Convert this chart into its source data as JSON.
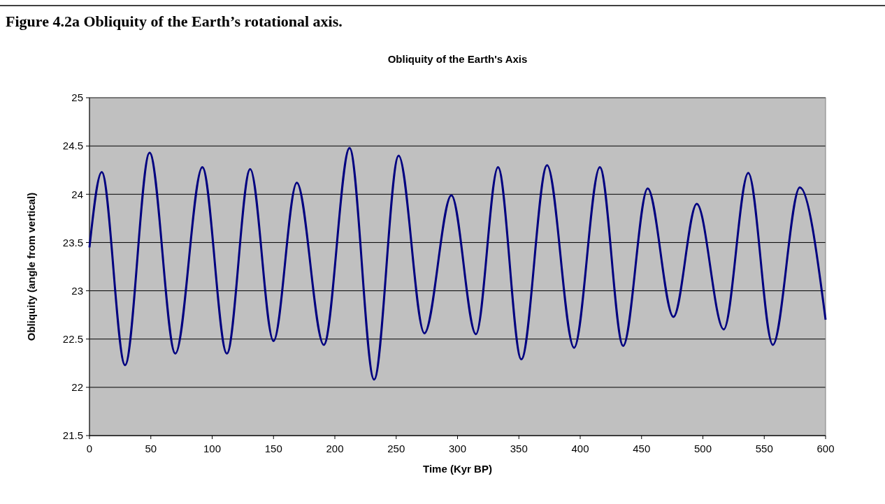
{
  "chart_data": {
    "type": "line",
    "title": "Figure 4.2a Obliquity of the Earth’s rotational axis.",
    "subtitle": "Obliquity of the Earth's Axis",
    "xlabel": "Time (Kyr BP)",
    "ylabel": "Obliquity (angle from vertical)",
    "x": [
      0,
      10,
      29,
      49,
      70,
      92,
      112,
      131,
      150,
      169,
      191,
      212,
      232,
      252,
      273,
      295,
      315,
      333,
      352,
      373,
      395,
      416,
      435,
      455,
      476,
      495,
      517,
      537,
      557,
      579,
      600
    ],
    "series": [
      {
        "color": "#000080",
        "values": [
          23.45,
          24.23,
          22.23,
          24.43,
          22.35,
          24.28,
          22.35,
          24.26,
          22.48,
          24.12,
          22.44,
          24.48,
          22.08,
          24.4,
          22.56,
          23.99,
          22.55,
          24.28,
          22.29,
          24.3,
          22.41,
          24.28,
          22.43,
          24.06,
          22.73,
          23.9,
          22.6,
          24.22,
          22.44,
          24.07,
          22.7
        ]
      }
    ],
    "xlim": [
      0,
      600
    ],
    "xticks": [
      0,
      50,
      100,
      150,
      200,
      250,
      300,
      350,
      400,
      450,
      500,
      550,
      600
    ],
    "ylim": [
      21.5,
      25
    ],
    "yticks": [
      21.5,
      22,
      22.5,
      23,
      23.5,
      24,
      24.5,
      25
    ],
    "grid": "y",
    "marker": "none",
    "line_style": "solid"
  }
}
